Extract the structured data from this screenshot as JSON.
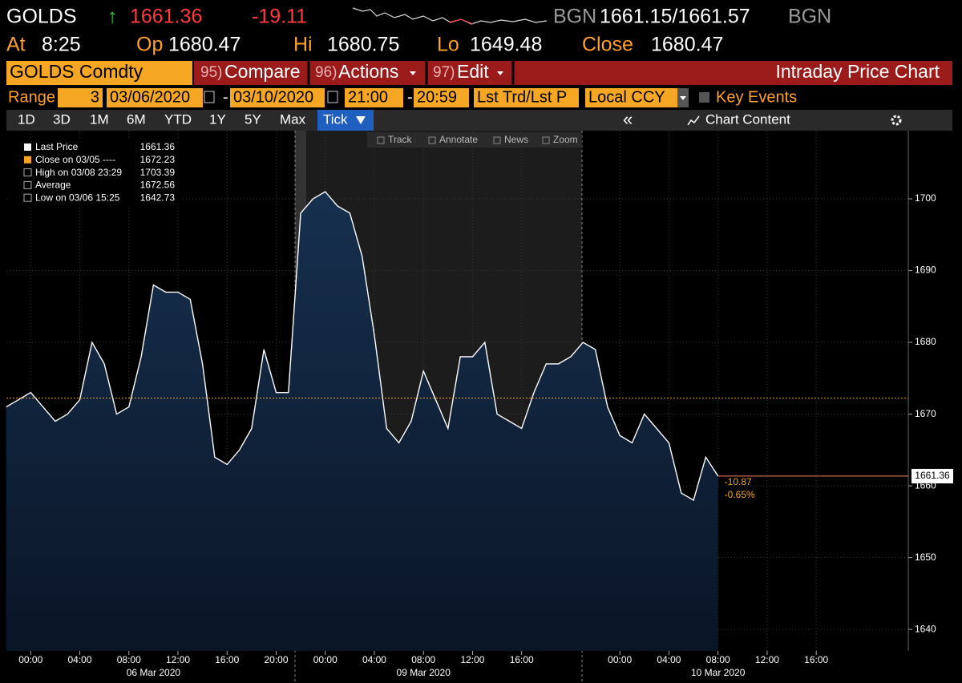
{
  "header": {
    "ticker": "GOLDS",
    "arrow": "↑",
    "last": "1661.36",
    "change": "-19.11",
    "source": "BGN",
    "bid_ask": "1661.15/1661.57",
    "source2": "BGN"
  },
  "quote": {
    "at_label": "At",
    "at": "8:25",
    "open_label": "Op",
    "open": "1680.47",
    "high_label": "Hi",
    "high": "1680.75",
    "low_label": "Lo",
    "low": "1649.48",
    "close_label": "Close",
    "close": "1680.47"
  },
  "menu": {
    "security": "GOLDS Comdty",
    "items": [
      {
        "num": "95)",
        "label": "Compare"
      },
      {
        "num": "96)",
        "label": "Actions"
      },
      {
        "num": "97)",
        "label": "Edit"
      }
    ],
    "title": "Intraday Price Chart"
  },
  "range": {
    "label": "Range",
    "count": "3",
    "start_date": "03/06/2020",
    "separator": "-",
    "end_date": "03/10/2020",
    "start_time": "21:00",
    "end_time": "20:59",
    "price_type": "Lst Trd/Lst P",
    "currency": "Local CCY",
    "key_events": "Key Events"
  },
  "tabs": [
    "1D",
    "3D",
    "1M",
    "6M",
    "YTD",
    "1Y",
    "5Y",
    "Max",
    "Tick"
  ],
  "chart_tools": [
    "Track",
    "Annotate",
    "News",
    "Zoom"
  ],
  "chart_content": "Chart Content",
  "chart_data": {
    "type": "area",
    "categories": [
      null,
      null,
      "00:00",
      null,
      null,
      null,
      "04:00",
      null,
      null,
      null,
      "08:00",
      null,
      null,
      null,
      "12:00",
      null,
      null,
      null,
      "16:00",
      null,
      null,
      null,
      "20:00",
      null,
      null,
      null,
      "00:00",
      null,
      null,
      null,
      "04:00",
      null,
      null,
      null,
      "08:00",
      null,
      null,
      null,
      "12:00",
      null,
      null,
      null,
      "16:00",
      null,
      null,
      null,
      null,
      null,
      null,
      null,
      "00:00",
      null,
      null,
      null,
      "04:00",
      null,
      null,
      null,
      "08:00",
      null,
      null,
      null,
      "12:00",
      null,
      null,
      null,
      "16:00",
      null,
      null,
      null,
      null,
      null,
      null,
      null
    ],
    "x_dates": [
      "06 Mar 2020",
      "09 Mar 2020",
      "10 Mar 2020"
    ],
    "values": [
      1671,
      1672,
      1673,
      1671,
      1669,
      1670,
      1672,
      1680,
      1677,
      1670,
      1671,
      1678,
      1688,
      1687,
      1687,
      1686,
      1677,
      1664,
      1663,
      1665,
      1668,
      1679,
      1673,
      1673,
      1698,
      1700,
      1701,
      1699,
      1698,
      1692,
      1681,
      1668,
      1666,
      1669,
      1676,
      1672,
      1668,
      1678,
      1678,
      1680,
      1670,
      1669,
      1668,
      1673,
      1677,
      1677,
      1678,
      1680,
      1679,
      1671,
      1667,
      1666,
      1670,
      1668,
      1666,
      1659,
      1658,
      1664,
      1661.36,
      null,
      null,
      null,
      null,
      null,
      null,
      null,
      null,
      null,
      null,
      null,
      null,
      null,
      null,
      null
    ],
    "color": "#ffffff",
    "fill": "#16304f",
    "ylim": [
      1637,
      1709.5
    ],
    "yticks": [
      1640,
      1650,
      1660,
      1670,
      1680,
      1690,
      1700
    ],
    "grid": true,
    "legend_items": [
      {
        "label": "Last Price",
        "value": 1661.36
      },
      {
        "label": "Close on 03/05 ----",
        "value": 1672.23
      },
      {
        "label": "High on 03/08 23:29",
        "value": 1703.39
      },
      {
        "label": "Average",
        "value": 1672.56
      },
      {
        "label": "Low on 03/06 15:25",
        "value": 1642.73
      }
    ],
    "annotations": [
      "-10.87",
      "-0.65%"
    ]
  }
}
